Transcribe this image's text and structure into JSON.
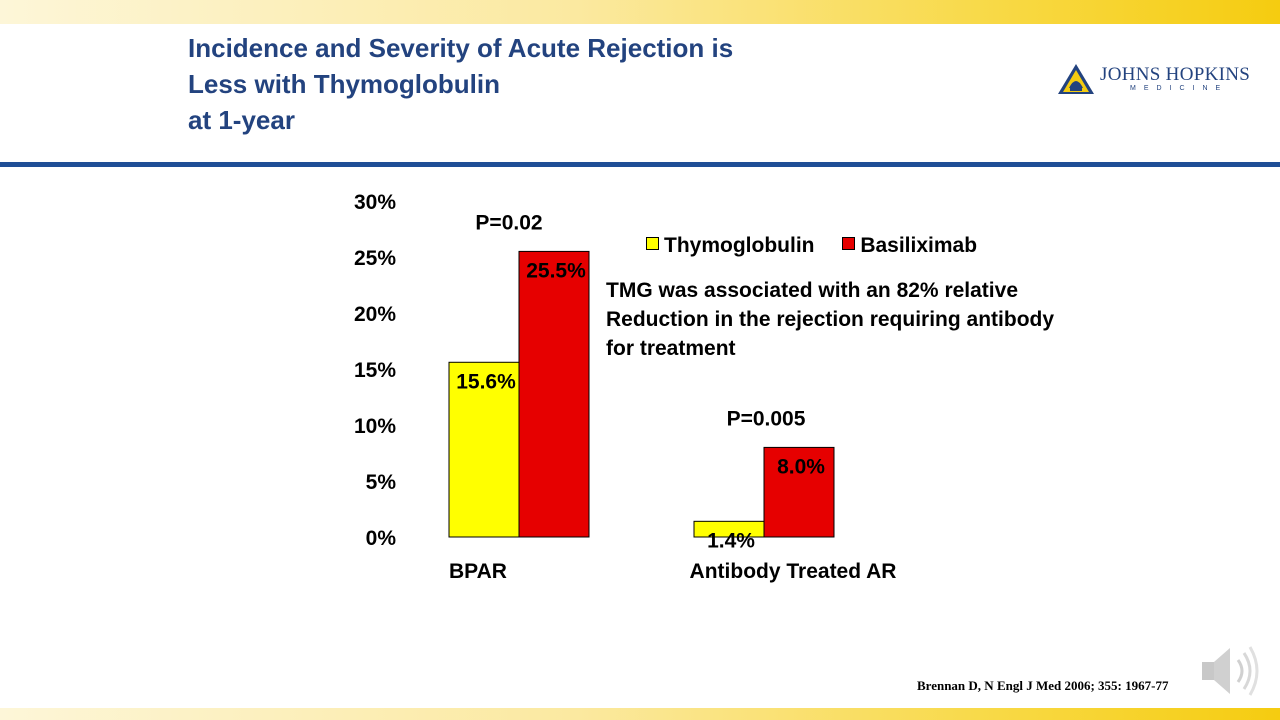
{
  "title": {
    "lines": [
      "Incidence and Severity of Acute Rejection is",
      "Less with Thymoglobulin",
      "at 1-year"
    ]
  },
  "logo": {
    "text": "JOHNS HOPKINS",
    "subtext": "MEDICINE"
  },
  "note": {
    "lines": [
      "TMG was associated with an 82% relative",
      "Reduction in the rejection requiring antibody",
      "for treatment"
    ]
  },
  "citation": "Brennan D, N Engl J Med 2006; 355: 1967-77",
  "icons": {
    "speaker": "speaker-icon"
  },
  "colors": {
    "title": "#23437f",
    "rule": "#1f4e96",
    "thymoglobulin": "#ffff00",
    "basiliximab": "#e60000"
  },
  "chart_data": {
    "type": "bar",
    "categories": [
      "BPAR",
      "Antibody Treated AR"
    ],
    "series": [
      {
        "name": "Thymoglobulin",
        "values": [
          15.6,
          1.4
        ],
        "labels": [
          "15.6%",
          "1.4%"
        ],
        "color": "#ffff00"
      },
      {
        "name": "Basiliximab",
        "values": [
          25.5,
          8.0
        ],
        "labels": [
          "25.5%",
          "8.0%"
        ],
        "color": "#e60000"
      }
    ],
    "annotations": [
      "P=0.02",
      "P=0.005"
    ],
    "y_ticks": [
      "0%",
      "5%",
      "10%",
      "15%",
      "20%",
      "25%",
      "30%"
    ],
    "ylim": [
      0,
      30
    ],
    "grid": false,
    "legend_position": "top-right"
  }
}
